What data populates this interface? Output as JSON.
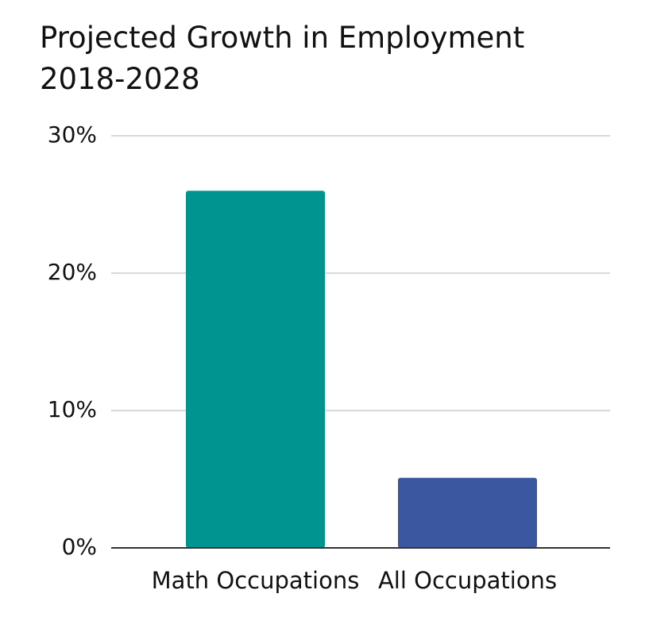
{
  "chart_data": {
    "type": "bar",
    "title": "Projected Growth in Employment 2018-2028",
    "categories": [
      "Math Occupations",
      "All Occupations"
    ],
    "values": [
      26,
      5.1
    ],
    "colors": [
      "#009490",
      "#3a57a0"
    ],
    "ylim": [
      0,
      30
    ],
    "yticks": [
      {
        "value": 0,
        "label": "0%"
      },
      {
        "value": 10,
        "label": "10%"
      },
      {
        "value": 20,
        "label": "20%"
      },
      {
        "value": 30,
        "label": "30%"
      }
    ],
    "grid": true
  }
}
